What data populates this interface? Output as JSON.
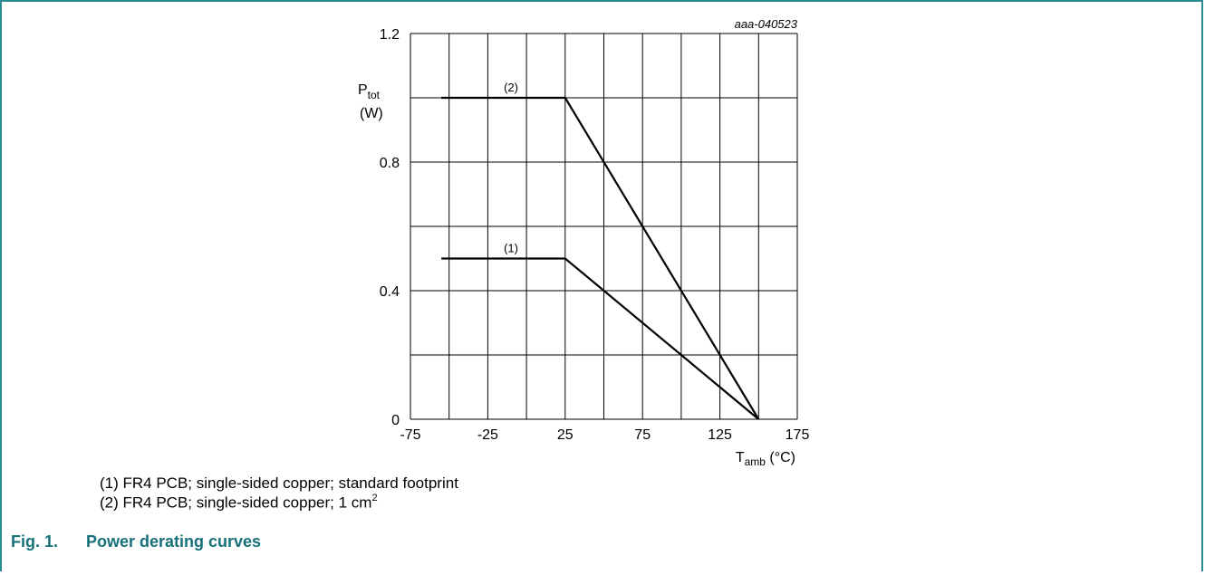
{
  "chart_data": {
    "type": "line",
    "watermark": "aaa-040523",
    "ylabel_main": "P",
    "ylabel_sub": "tot",
    "ylabel_unit": "(W)",
    "xlabel_main": "T",
    "xlabel_sub": "amb",
    "xlabel_unit": " (°C)",
    "xlim": [
      -75,
      175
    ],
    "ylim": [
      0,
      1.2
    ],
    "x_ticks": [
      -75,
      -25,
      25,
      75,
      125,
      175
    ],
    "x_tick_labels": [
      "-75",
      "-25",
      "25",
      "75",
      "125",
      "175"
    ],
    "y_ticks": [
      0,
      0.4,
      0.8,
      1.2
    ],
    "y_tick_labels": [
      "0",
      "0.4",
      "0.8",
      "1.2"
    ],
    "x_grid_step": 25,
    "y_grid_step": 0.2,
    "grid": true,
    "series": [
      {
        "name": "(1)",
        "x": [
          -55,
          25,
          150
        ],
        "y": [
          0.5,
          0.5,
          0
        ],
        "label_at": [
          -10,
          0.5
        ]
      },
      {
        "name": "(2)",
        "x": [
          -55,
          25,
          150
        ],
        "y": [
          1.0,
          1.0,
          0
        ],
        "label_at": [
          -10,
          1.0
        ]
      }
    ]
  },
  "notes": {
    "n1": "(1) FR4 PCB; single-sided copper; standard footprint",
    "n2_prefix": "(2) FR4 PCB; single-sided copper; 1 cm",
    "n2_sup": "2"
  },
  "caption": {
    "number": "Fig. 1.",
    "title": "Power derating curves"
  },
  "colors": {
    "frame": "#2b8a92",
    "caption": "#17717a",
    "line": "#000000",
    "grid": "#000000"
  }
}
